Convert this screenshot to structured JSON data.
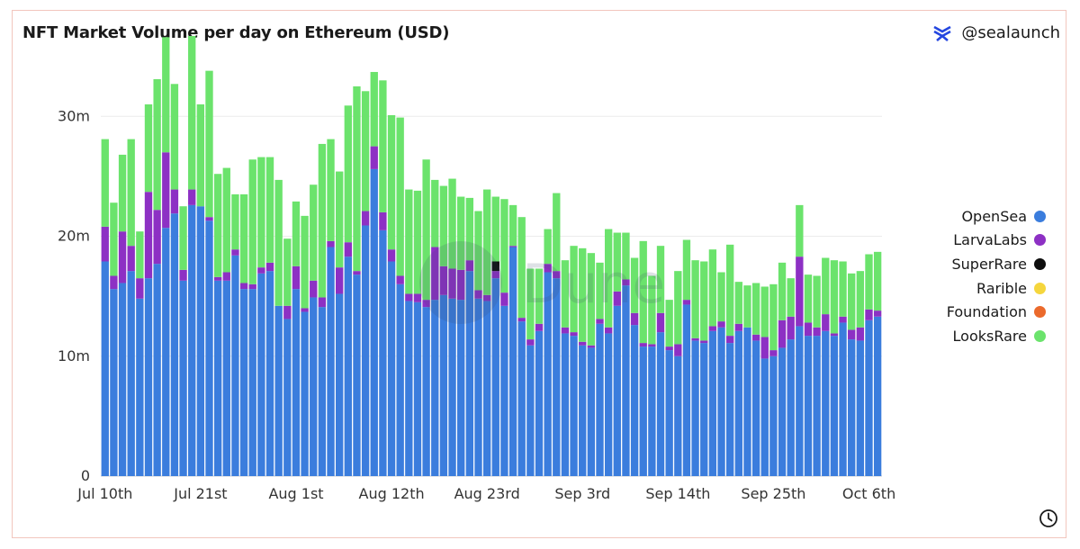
{
  "header": {
    "title": "NFT Market Volume per day on Ethereum (USD)",
    "handle": "@sealaunch",
    "logo_icon": "sealaunch-logo-icon"
  },
  "watermark": "Dune",
  "footer": {
    "clock_icon": "clock-icon"
  },
  "chart_data": {
    "type": "bar",
    "stacked": true,
    "title": "NFT Market Volume per day on Ethereum (USD)",
    "xlabel": "",
    "ylabel": "",
    "ylim": [
      0,
      37000000
    ],
    "yticks": [
      0,
      10000000,
      20000000,
      30000000
    ],
    "ytick_labels": [
      "0",
      "10m",
      "20m",
      "30m"
    ],
    "xtick_labels": [
      "Jul 10th",
      "Jul 21st",
      "Aug 1st",
      "Aug 12th",
      "Aug 23rd",
      "Sep 3rd",
      "Sep 14th",
      "Sep 25th",
      "Oct 6th"
    ],
    "xtick_index": [
      0,
      11,
      22,
      33,
      44,
      55,
      66,
      77,
      88
    ],
    "grid": true,
    "legend_position": "right",
    "categories": [
      "2022-07-10",
      "2022-07-11",
      "2022-07-12",
      "2022-07-13",
      "2022-07-14",
      "2022-07-15",
      "2022-07-16",
      "2022-07-17",
      "2022-07-18",
      "2022-07-19",
      "2022-07-20",
      "2022-07-21",
      "2022-07-22",
      "2022-07-23",
      "2022-07-24",
      "2022-07-25",
      "2022-07-26",
      "2022-07-27",
      "2022-07-28",
      "2022-07-29",
      "2022-07-30",
      "2022-07-31",
      "2022-08-01",
      "2022-08-02",
      "2022-08-03",
      "2022-08-04",
      "2022-08-05",
      "2022-08-06",
      "2022-08-07",
      "2022-08-08",
      "2022-08-09",
      "2022-08-10",
      "2022-08-11",
      "2022-08-12",
      "2022-08-13",
      "2022-08-14",
      "2022-08-15",
      "2022-08-16",
      "2022-08-17",
      "2022-08-18",
      "2022-08-19",
      "2022-08-20",
      "2022-08-21",
      "2022-08-22",
      "2022-08-23",
      "2022-08-24",
      "2022-08-25",
      "2022-08-26",
      "2022-08-27",
      "2022-08-28",
      "2022-08-29",
      "2022-08-30",
      "2022-08-31",
      "2022-09-01",
      "2022-09-02",
      "2022-09-03",
      "2022-09-04",
      "2022-09-05",
      "2022-09-06",
      "2022-09-07",
      "2022-09-08",
      "2022-09-09",
      "2022-09-10",
      "2022-09-11",
      "2022-09-12",
      "2022-09-13",
      "2022-09-14",
      "2022-09-15",
      "2022-09-16",
      "2022-09-17",
      "2022-09-18",
      "2022-09-19",
      "2022-09-20",
      "2022-09-21",
      "2022-09-22",
      "2022-09-23",
      "2022-09-24",
      "2022-09-25",
      "2022-09-26",
      "2022-09-27",
      "2022-09-28",
      "2022-09-29",
      "2022-09-30",
      "2022-10-01",
      "2022-10-02",
      "2022-10-03",
      "2022-10-04",
      "2022-10-05",
      "2022-10-06",
      "2022-10-07"
    ],
    "series": [
      {
        "name": "OpenSea",
        "color": "#3b7ddd",
        "values": [
          17.9,
          15.6,
          16.1,
          17.1,
          14.8,
          16.5,
          17.7,
          20.7,
          21.9,
          16.3,
          22.6,
          22.5,
          21.3,
          16.3,
          16.3,
          18.4,
          15.6,
          15.6,
          16.9,
          17.1,
          14.2,
          13.1,
          15.6,
          13.7,
          14.9,
          14.1,
          19.1,
          15.2,
          18.3,
          16.8,
          20.9,
          25.6,
          20.5,
          17.9,
          16.0,
          14.6,
          14.5,
          14.1,
          14.7,
          15.1,
          14.8,
          14.7,
          17.1,
          14.8,
          14.6,
          16.5,
          14.2,
          19.1,
          12.9,
          10.9,
          12.1,
          17.0,
          16.5,
          11.9,
          11.7,
          10.9,
          10.7,
          12.7,
          11.9,
          14.2,
          15.9,
          12.6,
          10.8,
          10.8,
          12.0,
          10.5,
          10.0,
          14.3,
          11.3,
          11.1,
          12.1,
          12.4,
          11.1,
          12.1,
          12.4,
          11.3,
          9.8,
          10.0,
          10.7,
          11.4,
          12.5,
          11.7,
          11.7,
          12.1,
          11.7,
          12.8,
          11.4,
          11.3,
          13.0,
          13.3
        ]
      },
      {
        "name": "LarvaLabs",
        "color": "#8d30c4",
        "values": [
          2.9,
          1.1,
          4.3,
          2.1,
          1.7,
          7.2,
          4.5,
          6.3,
          2.0,
          0.9,
          1.3,
          0.0,
          0.3,
          0.3,
          0.7,
          0.5,
          0.5,
          0.4,
          0.5,
          0.7,
          0.0,
          1.1,
          1.9,
          0.3,
          1.4,
          0.8,
          0.5,
          2.2,
          1.2,
          0.3,
          1.2,
          1.9,
          1.5,
          1.0,
          0.7,
          0.6,
          0.7,
          0.6,
          4.4,
          2.4,
          2.5,
          2.5,
          0.9,
          0.7,
          0.5,
          0.6,
          1.1,
          0.1,
          0.3,
          0.5,
          0.6,
          0.7,
          0.6,
          0.5,
          0.3,
          0.3,
          0.2,
          0.4,
          0.5,
          1.2,
          0.5,
          1.0,
          0.3,
          0.2,
          1.6,
          0.3,
          1.0,
          0.4,
          0.2,
          0.2,
          0.4,
          0.5,
          0.6,
          0.6,
          0.0,
          0.5,
          1.8,
          0.5,
          2.3,
          1.9,
          5.8,
          1.1,
          0.7,
          1.4,
          0.2,
          0.5,
          0.8,
          1.1,
          0.9,
          0.5
        ]
      },
      {
        "name": "SuperRare",
        "color": "#0e0e0e",
        "values": [
          0,
          0,
          0,
          0,
          0,
          0,
          0,
          0,
          0,
          0,
          0,
          0,
          0,
          0,
          0,
          0,
          0,
          0,
          0,
          0,
          0,
          0,
          0,
          0,
          0,
          0,
          0,
          0,
          0,
          0,
          0,
          0,
          0,
          0,
          0,
          0,
          0,
          0,
          0,
          0,
          0,
          0,
          0,
          0,
          0,
          0.8,
          0,
          0,
          0,
          0,
          0,
          0,
          0,
          0,
          0,
          0,
          0,
          0,
          0,
          0,
          0,
          0,
          0,
          0,
          0,
          0,
          0,
          0,
          0,
          0,
          0,
          0,
          0,
          0,
          0,
          0,
          0,
          0,
          0,
          0,
          0,
          0,
          0,
          0,
          0,
          0,
          0,
          0,
          0,
          0
        ]
      },
      {
        "name": "Rarible",
        "color": "#f5d63d",
        "values": [
          0,
          0,
          0,
          0,
          0,
          0,
          0,
          0,
          0,
          0,
          0,
          0,
          0,
          0,
          0,
          0,
          0,
          0,
          0,
          0,
          0,
          0,
          0,
          0,
          0,
          0,
          0,
          0,
          0,
          0,
          0,
          0,
          0,
          0,
          0,
          0,
          0,
          0,
          0,
          0,
          0,
          0,
          0,
          0,
          0,
          0,
          0,
          0,
          0,
          0,
          0,
          0,
          0,
          0,
          0,
          0,
          0,
          0,
          0,
          0,
          0,
          0,
          0,
          0,
          0,
          0,
          0,
          0,
          0,
          0,
          0,
          0,
          0,
          0,
          0,
          0,
          0,
          0,
          0,
          0,
          0,
          0,
          0,
          0,
          0,
          0,
          0,
          0,
          0,
          0
        ]
      },
      {
        "name": "Foundation",
        "color": "#eb6a2c",
        "values": [
          0,
          0,
          0,
          0,
          0,
          0,
          0,
          0,
          0,
          0,
          0,
          0,
          0,
          0,
          0,
          0,
          0,
          0,
          0,
          0,
          0,
          0,
          0,
          0,
          0,
          0,
          0,
          0,
          0,
          0,
          0,
          0,
          0,
          0,
          0,
          0,
          0,
          0,
          0,
          0,
          0,
          0,
          0,
          0,
          0,
          0,
          0,
          0,
          0,
          0,
          0,
          0,
          0,
          0,
          0,
          0,
          0,
          0,
          0,
          0,
          0,
          0,
          0,
          0,
          0,
          0,
          0,
          0,
          0,
          0,
          0,
          0,
          0,
          0,
          0,
          0,
          0,
          0,
          0,
          0,
          0,
          0,
          0,
          0,
          0,
          0,
          0,
          0,
          0,
          0
        ]
      },
      {
        "name": "LooksRare",
        "color": "#6be36c",
        "values": [
          7.3,
          6.1,
          6.4,
          8.9,
          3.9,
          7.3,
          10.9,
          9.6,
          8.8,
          5.3,
          12.8,
          8.5,
          12.2,
          8.6,
          8.7,
          4.6,
          7.4,
          10.4,
          9.2,
          8.8,
          10.5,
          5.6,
          5.4,
          7.7,
          8.0,
          12.8,
          8.5,
          8.0,
          11.4,
          15.4,
          10.0,
          6.2,
          11.0,
          11.2,
          13.2,
          8.7,
          8.6,
          11.7,
          5.6,
          6.7,
          7.5,
          6.1,
          5.2,
          6.6,
          8.8,
          5.4,
          7.8,
          3.4,
          8.4,
          5.9,
          4.6,
          2.9,
          6.5,
          5.6,
          7.2,
          7.8,
          7.7,
          4.7,
          8.2,
          4.9,
          3.9,
          4.6,
          8.5,
          5.7,
          5.6,
          3.9,
          6.1,
          5.0,
          6.5,
          6.6,
          6.4,
          4.1,
          7.6,
          3.5,
          3.5,
          4.3,
          4.2,
          5.5,
          4.8,
          3.2,
          4.3,
          4.0,
          4.3,
          4.7,
          6.1,
          4.6,
          4.7,
          4.7,
          4.6,
          4.9
        ]
      }
    ]
  }
}
